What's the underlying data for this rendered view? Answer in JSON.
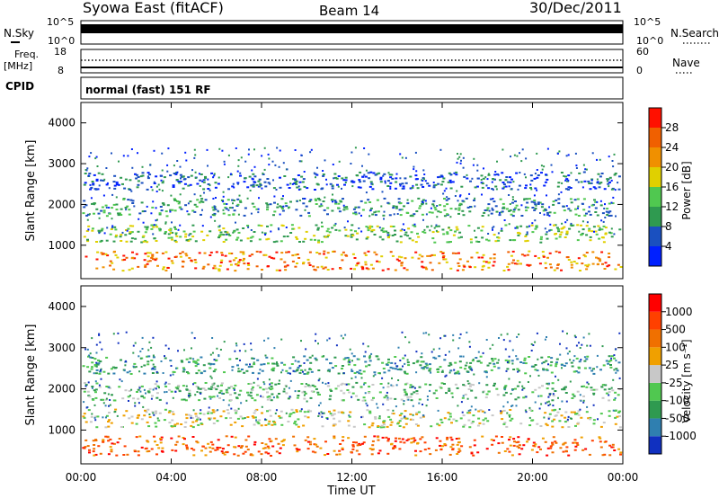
{
  "header": {
    "station": "Syowa East (fitACF)",
    "beam": "Beam 14",
    "date": "30/Dec/2011"
  },
  "panels": {
    "nsky": {
      "left_label": "N.Sky",
      "right_label": "N.Search",
      "left_ticks": [
        "10^5",
        "10^0"
      ],
      "right_ticks": [
        "10^5",
        "10^0"
      ]
    },
    "freq": {
      "left_label_1": "Freq.",
      "left_label_2": "[MHz]",
      "right_label": "Nave",
      "left_ticks": [
        "18",
        "8"
      ],
      "right_ticks": [
        "60",
        "0"
      ]
    },
    "cpid": {
      "label": "CPID",
      "text": "normal (fast) 151 RF"
    }
  },
  "chart_data": [
    {
      "type": "heatmap",
      "name": "power",
      "ylabel": "Slant Range [km]",
      "ylim": [
        180,
        4500
      ],
      "yticks": [
        "1000",
        "2000",
        "3000",
        "4000"
      ],
      "colorbar_label": "Power [dB]",
      "colorbar_ticks": [
        "4",
        "8",
        "12",
        "16",
        "20",
        "24",
        "28"
      ],
      "colors": [
        "#0020ff",
        "#1a50c0",
        "#2f9a50",
        "#50c850",
        "#e0d000",
        "#f09000",
        "#f06000",
        "#ff1000"
      ]
    },
    {
      "type": "heatmap",
      "name": "velocity",
      "ylabel": "Slant Range [km]",
      "ylim": [
        180,
        4500
      ],
      "yticks": [
        "1000",
        "2000",
        "3000",
        "4000"
      ],
      "colorbar_label": "Velocity [m s⁻¹]",
      "colorbar_ticks": [
        "1000",
        "500",
        "100",
        "25",
        "-25",
        "-100",
        "-500",
        "-1000"
      ],
      "colors": [
        "#1030c0",
        "#2f7fb0",
        "#2f9a50",
        "#50c850",
        "#c8c8c8",
        "#f0a000",
        "#f07000",
        "#ff4000",
        "#ff0000"
      ]
    }
  ],
  "xaxis": {
    "label": "Time UT",
    "ticks": [
      "00:00",
      "04:00",
      "08:00",
      "12:00",
      "16:00",
      "20:00",
      "00:00"
    ]
  }
}
